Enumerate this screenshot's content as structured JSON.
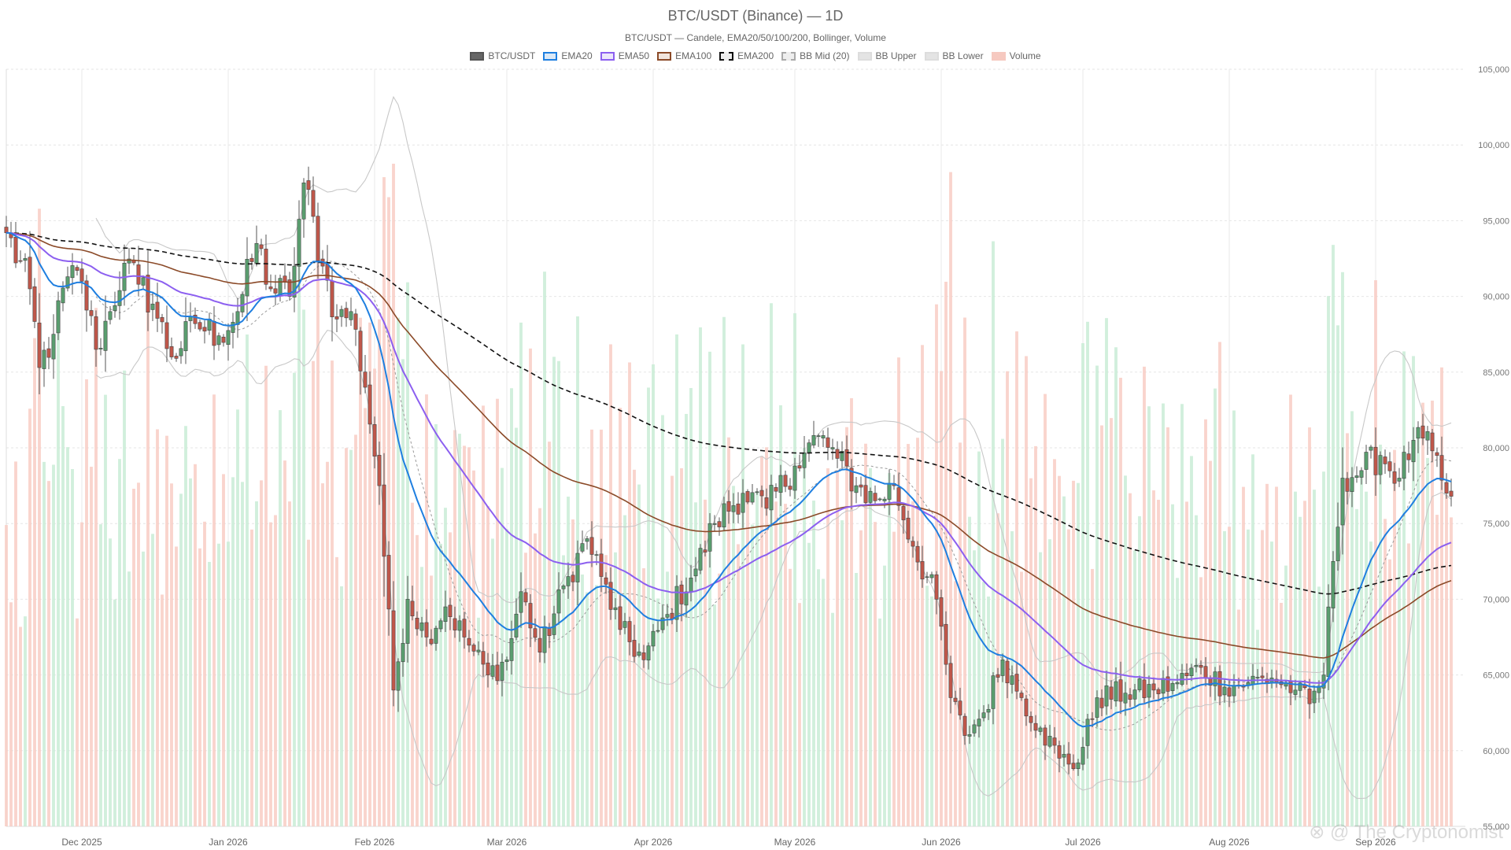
{
  "title": "BTC/USDT (Binance) — 1D",
  "subtitle": "BTC/USDT — Candele, EMA20/50/100/200, Bollinger, Volume",
  "watermark": "⊗ @ The Cryptonomist",
  "legend": [
    {
      "label": "BTC/USDT",
      "color": "#666666",
      "border": "#555555",
      "dashed": false
    },
    {
      "label": "EMA20",
      "color": "#dbe9f7",
      "border": "#1f7fe0",
      "dashed": false
    },
    {
      "label": "EMA50",
      "color": "#ece6fb",
      "border": "#8c5ff0",
      "dashed": false
    },
    {
      "label": "EMA100",
      "color": "#f1e4dc",
      "border": "#8b4a28",
      "dashed": false
    },
    {
      "label": "EMA200",
      "color": "#eeeeee",
      "border": "#111111",
      "dashed": true
    },
    {
      "label": "BB Mid (20)",
      "color": "#eeeeee",
      "border": "#aaaaaa",
      "dashed": true
    },
    {
      "label": "BB Upper",
      "color": "#e4e4e4",
      "border": "#dddddd",
      "dashed": false
    },
    {
      "label": "BB Lower",
      "color": "#e4e4e4",
      "border": "#dddddd",
      "dashed": false
    },
    {
      "label": "Volume",
      "color": "#f6c9c0",
      "border": "#f6c9c0",
      "dashed": false
    }
  ],
  "chart_data": {
    "type": "candlestick",
    "y_axis": {
      "min": 55000,
      "max": 105000,
      "ticks": [
        "55,000",
        "60,000",
        "65,000",
        "70,000",
        "75,000",
        "80,000",
        "85,000",
        "90,000",
        "95,000",
        "100,000",
        "105,000"
      ],
      "position": "right"
    },
    "x_axis": {
      "start": "2025-11-15",
      "end": "2026-09-20",
      "ticks": [
        {
          "date": "2025-12-01",
          "label": "Dec 2025"
        },
        {
          "date": "2026-01-01",
          "label": "Jan 2026"
        },
        {
          "date": "2026-02-01",
          "label": "Feb 2026"
        },
        {
          "date": "2026-03-01",
          "label": "Mar 2026"
        },
        {
          "date": "2026-04-01",
          "label": "Apr 2026"
        },
        {
          "date": "2026-05-01",
          "label": "May 2026"
        },
        {
          "date": "2026-06-01",
          "label": "Jun 2026"
        },
        {
          "date": "2026-07-01",
          "label": "Jul 2026"
        },
        {
          "date": "2026-08-01",
          "label": "Aug 2026"
        },
        {
          "date": "2026-09-01",
          "label": "Sep 2026"
        }
      ]
    },
    "grid": true,
    "legend_position": "top-center",
    "colors": {
      "up": "#5a9e6f",
      "down": "#c0574a",
      "vol_up": "#c9ecd6",
      "vol_down": "#f8cdc4"
    },
    "price_anchors": [
      {
        "date": "2025-11-15",
        "close": 94200
      },
      {
        "date": "2025-11-20",
        "close": 90500
      },
      {
        "date": "2025-11-22",
        "close": 85300
      },
      {
        "date": "2025-11-25",
        "close": 87500
      },
      {
        "date": "2025-11-28",
        "close": 91300
      },
      {
        "date": "2025-12-01",
        "close": 91000
      },
      {
        "date": "2025-12-04",
        "close": 86500
      },
      {
        "date": "2025-12-07",
        "close": 89000
      },
      {
        "date": "2025-12-10",
        "close": 92200
      },
      {
        "date": "2025-12-13",
        "close": 90800
      },
      {
        "date": "2025-12-16",
        "close": 89500
      },
      {
        "date": "2025-12-20",
        "close": 86000
      },
      {
        "date": "2025-12-25",
        "close": 88200
      },
      {
        "date": "2025-12-30",
        "close": 87400
      },
      {
        "date": "2026-01-03",
        "close": 89000
      },
      {
        "date": "2026-01-07",
        "close": 93500
      },
      {
        "date": "2026-01-10",
        "close": 90500
      },
      {
        "date": "2026-01-14",
        "close": 90000
      },
      {
        "date": "2026-01-17",
        "close": 97500
      },
      {
        "date": "2026-01-21",
        "close": 92000
      },
      {
        "date": "2026-01-24",
        "close": 88500
      },
      {
        "date": "2026-01-27",
        "close": 89000
      },
      {
        "date": "2026-01-30",
        "close": 84000
      },
      {
        "date": "2026-02-02",
        "close": 77500
      },
      {
        "date": "2026-02-05",
        "close": 64000
      },
      {
        "date": "2026-02-08",
        "close": 70000
      },
      {
        "date": "2026-02-12",
        "close": 67500
      },
      {
        "date": "2026-02-16",
        "close": 69500
      },
      {
        "date": "2026-02-20",
        "close": 67500
      },
      {
        "date": "2026-02-25",
        "close": 65000
      },
      {
        "date": "2026-03-01",
        "close": 66000
      },
      {
        "date": "2026-03-04",
        "close": 70500
      },
      {
        "date": "2026-03-08",
        "close": 66500
      },
      {
        "date": "2026-03-14",
        "close": 71500
      },
      {
        "date": "2026-03-18",
        "close": 74000
      },
      {
        "date": "2026-03-21",
        "close": 71500
      },
      {
        "date": "2026-03-25",
        "close": 68000
      },
      {
        "date": "2026-03-30",
        "close": 66000
      },
      {
        "date": "2026-04-04",
        "close": 69000
      },
      {
        "date": "2026-04-10",
        "close": 72000
      },
      {
        "date": "2026-04-14",
        "close": 75000
      },
      {
        "date": "2026-04-20",
        "close": 77000
      },
      {
        "date": "2026-04-25",
        "close": 76000
      },
      {
        "date": "2026-05-01",
        "close": 78800
      },
      {
        "date": "2026-05-06",
        "close": 80800
      },
      {
        "date": "2026-05-10",
        "close": 79300
      },
      {
        "date": "2026-05-14",
        "close": 77500
      },
      {
        "date": "2026-05-18",
        "close": 76500
      },
      {
        "date": "2026-05-22",
        "close": 77500
      },
      {
        "date": "2026-05-26",
        "close": 73500
      },
      {
        "date": "2026-05-31",
        "close": 70000
      },
      {
        "date": "2026-06-03",
        "close": 63500
      },
      {
        "date": "2026-06-06",
        "close": 61000
      },
      {
        "date": "2026-06-10",
        "close": 62500
      },
      {
        "date": "2026-06-14",
        "close": 66000
      },
      {
        "date": "2026-06-18",
        "close": 63500
      },
      {
        "date": "2026-06-22",
        "close": 61500
      },
      {
        "date": "2026-06-26",
        "close": 59500
      },
      {
        "date": "2026-06-30",
        "close": 59200
      },
      {
        "date": "2026-07-04",
        "close": 63500
      },
      {
        "date": "2026-07-10",
        "close": 63800
      },
      {
        "date": "2026-07-16",
        "close": 64000
      },
      {
        "date": "2026-07-21",
        "close": 64500
      },
      {
        "date": "2026-07-26",
        "close": 65500
      },
      {
        "date": "2026-07-31",
        "close": 64200
      },
      {
        "date": "2026-08-05",
        "close": 64500
      },
      {
        "date": "2026-08-10",
        "close": 64800
      },
      {
        "date": "2026-08-15",
        "close": 64000
      },
      {
        "date": "2026-08-18",
        "close": 63100
      },
      {
        "date": "2026-08-21",
        "close": 65000
      },
      {
        "date": "2026-08-23",
        "close": 72500
      },
      {
        "date": "2026-08-25",
        "close": 78000
      },
      {
        "date": "2026-08-29",
        "close": 78500
      },
      {
        "date": "2026-09-02",
        "close": 79500
      },
      {
        "date": "2026-09-06",
        "close": 78000
      },
      {
        "date": "2026-09-09",
        "close": 80500
      },
      {
        "date": "2026-09-13",
        "close": 79800
      },
      {
        "date": "2026-09-16",
        "close": 77000
      },
      {
        "date": "2026-09-17",
        "close": 76800
      }
    ],
    "ema_start": {
      "ema20": 94200,
      "ema50": 94200,
      "ema100": 94200,
      "ema200": 94200
    },
    "volume_scale": {
      "min_rel": 0.25,
      "max_rel": 1.0,
      "peak_date": "2026-02-05"
    }
  }
}
